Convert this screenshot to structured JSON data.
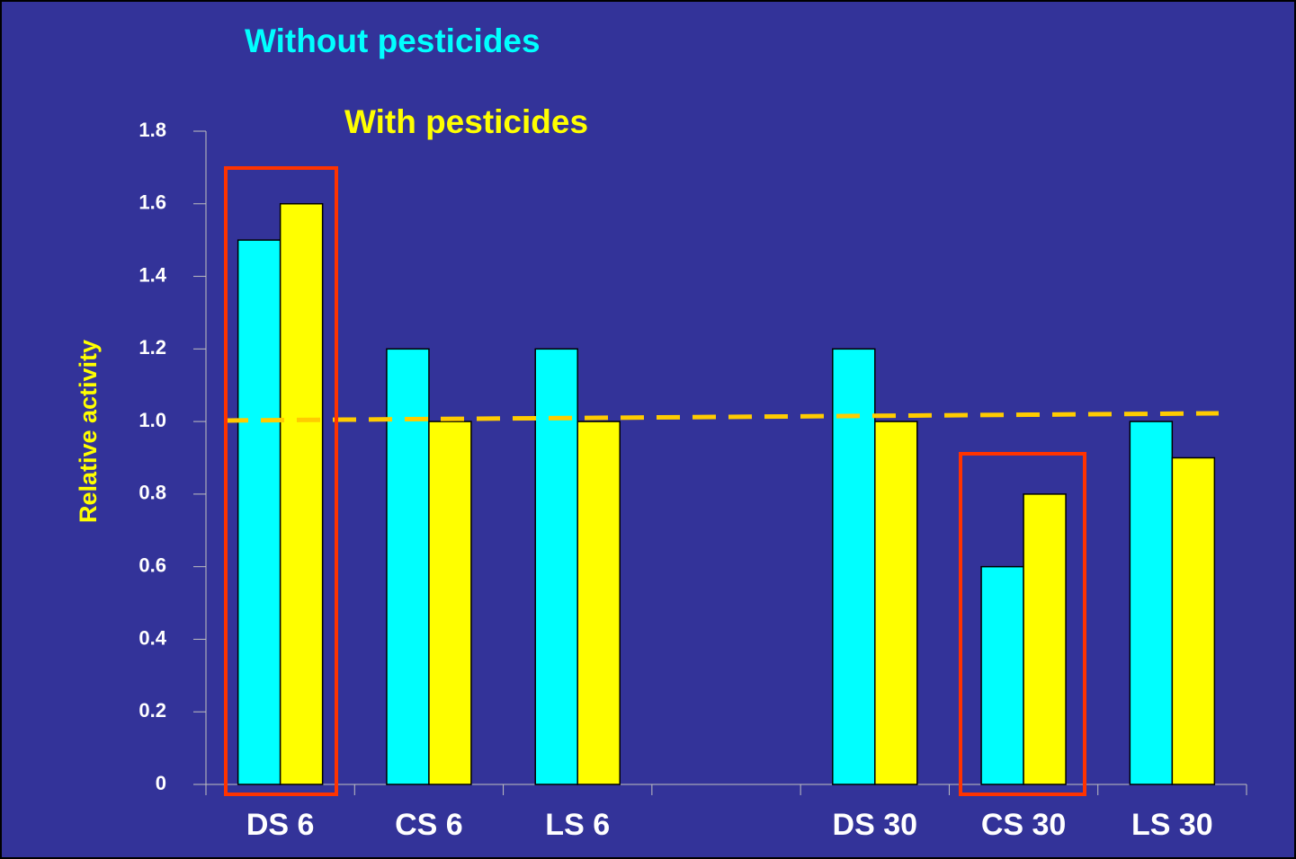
{
  "chart_data": {
    "type": "bar",
    "categories": [
      "DS 6",
      "CS 6",
      "LS 6",
      null,
      "DS 30",
      "CS 30",
      "LS 30"
    ],
    "series": [
      {
        "name": "Without pesticides",
        "color": "#00ffff",
        "values": [
          1.5,
          1.2,
          1.2,
          null,
          1.2,
          0.6,
          1.0
        ]
      },
      {
        "name": "With pesticides",
        "color": "#ffff00",
        "values": [
          1.6,
          1.0,
          1.0,
          null,
          1.0,
          0.8,
          0.9
        ]
      }
    ],
    "y_label": "Relative activity",
    "ylim": [
      0,
      1.8
    ],
    "yticks": [
      0,
      0.2,
      0.4,
      0.6,
      0.8,
      {
        "value": 1,
        "label": "1.0"
      },
      1.2,
      1.4,
      1.6,
      1.8
    ]
  }
}
